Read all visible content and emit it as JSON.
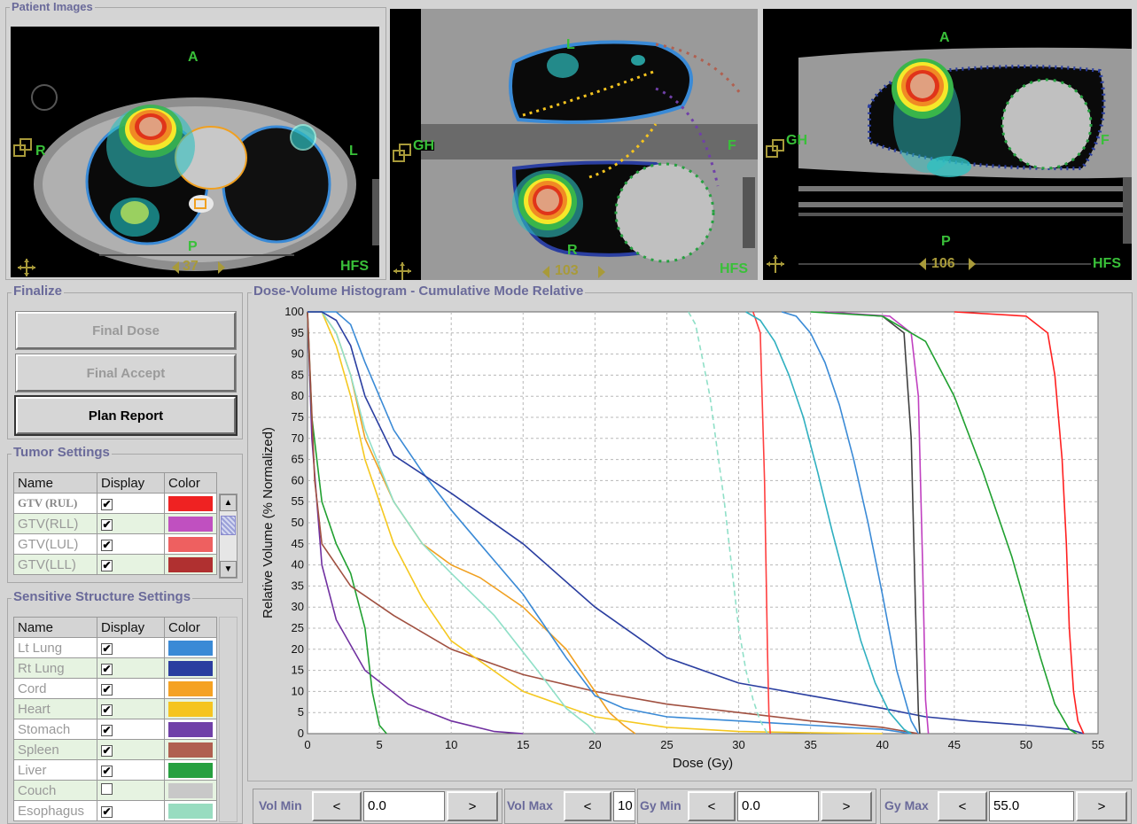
{
  "patient_images": {
    "title": "Patient Images",
    "views": [
      {
        "top": "A",
        "bottom": "P",
        "left": "R",
        "right": "L",
        "slice": "37",
        "orientation": "HFS"
      },
      {
        "top": "L",
        "bottom": "R",
        "left": "GH",
        "right": "F",
        "slice": "103",
        "orientation": "HFS"
      },
      {
        "top": "A",
        "bottom": "P",
        "left": "GH",
        "right": "F",
        "slice": "106",
        "orientation": "HFS"
      }
    ]
  },
  "finalize": {
    "title": "Finalize",
    "final_dose": "Final Dose",
    "final_accept": "Final Accept",
    "plan_report": "Plan Report"
  },
  "tumor_settings": {
    "title": "Tumor Settings",
    "headers": [
      "Name",
      "Display",
      "Color"
    ],
    "rows": [
      {
        "name": "GTV (RUL)",
        "checked": true,
        "color": "#ef2222"
      },
      {
        "name": "GTV(RLL)",
        "checked": true,
        "color": "#c050c0"
      },
      {
        "name": "GTV(LUL)",
        "checked": true,
        "color": "#ee6060"
      },
      {
        "name": "GTV(LLL)",
        "checked": true,
        "color": "#b03030"
      }
    ]
  },
  "sensitive_settings": {
    "title": "Sensitive Structure Settings",
    "headers": [
      "Name",
      "Display",
      "Color"
    ],
    "rows": [
      {
        "name": "Lt Lung",
        "checked": true,
        "color": "#3a8ad6"
      },
      {
        "name": "Rt Lung",
        "checked": true,
        "color": "#2a3ea0"
      },
      {
        "name": "Cord",
        "checked": true,
        "color": "#f5a223"
      },
      {
        "name": "Heart",
        "checked": true,
        "color": "#f5c41f"
      },
      {
        "name": "Stomach",
        "checked": true,
        "color": "#7040a8"
      },
      {
        "name": "Spleen",
        "checked": true,
        "color": "#b06050"
      },
      {
        "name": "Liver",
        "checked": true,
        "color": "#26a040"
      },
      {
        "name": "Couch",
        "checked": false,
        "color": "#c8c8c8"
      },
      {
        "name": "Esophagus",
        "checked": true,
        "color": "#98dcc0"
      }
    ]
  },
  "chart_data": {
    "type": "line",
    "title": "Dose-Volume Histogram - Cumulative Mode Relative",
    "xlabel": "Dose (Gy)",
    "ylabel": "Relative Volume (% Normalized)",
    "xlim": [
      0,
      55
    ],
    "ylim": [
      0,
      100
    ],
    "xticks": [
      0,
      5,
      10,
      15,
      20,
      25,
      30,
      35,
      40,
      45,
      50,
      55
    ],
    "yticks": [
      0,
      5,
      10,
      15,
      20,
      25,
      30,
      35,
      40,
      45,
      50,
      55,
      60,
      65,
      70,
      75,
      80,
      85,
      90,
      95,
      100
    ],
    "grid": true,
    "series": [
      {
        "color": "#7030a0",
        "x": [
          0,
          0.3,
          1,
          2,
          4,
          7,
          10,
          13,
          15
        ],
        "y": [
          100,
          70,
          40,
          27,
          15,
          7,
          3,
          0.5,
          0
        ]
      },
      {
        "color": "#20a030",
        "x": [
          0,
          0.3,
          1,
          2,
          3,
          4,
          4.5,
          5,
          5.5
        ],
        "y": [
          100,
          75,
          55,
          45,
          38,
          25,
          10,
          2,
          0
        ]
      },
      {
        "color": "#a05040",
        "x": [
          0,
          0.5,
          1,
          3,
          6,
          10,
          15,
          20,
          25,
          30,
          35,
          40,
          42.5
        ],
        "y": [
          100,
          60,
          45,
          35,
          28,
          20,
          14,
          10,
          7,
          5,
          3,
          1.5,
          0
        ]
      },
      {
        "color": "#f0a020",
        "x": [
          0,
          1,
          2,
          3,
          4,
          6,
          8,
          10,
          12,
          15,
          18,
          20,
          21,
          22,
          22.8
        ],
        "y": [
          100,
          100,
          95,
          85,
          70,
          55,
          45,
          40,
          37,
          30,
          20,
          10,
          5,
          2,
          0
        ]
      },
      {
        "color": "#f5c820",
        "x": [
          0,
          1,
          2,
          3,
          4,
          6,
          8,
          10,
          15,
          20,
          25,
          30,
          35,
          40
        ],
        "y": [
          100,
          100,
          92,
          80,
          65,
          45,
          32,
          22,
          10,
          4,
          1.5,
          0.5,
          0.2,
          0
        ]
      },
      {
        "color": "#90e0c8",
        "x": [
          0,
          1,
          2,
          3,
          4,
          6,
          8,
          10,
          13,
          16,
          18,
          19.5,
          20
        ],
        "y": [
          100,
          100,
          95,
          85,
          72,
          55,
          45,
          38,
          28,
          15,
          6,
          2,
          0
        ]
      },
      {
        "color": "#3a8ad6",
        "x": [
          0,
          1,
          2,
          3,
          4,
          6,
          8,
          10,
          12,
          15,
          18,
          20,
          22,
          25,
          30,
          35,
          40,
          42
        ],
        "y": [
          100,
          100,
          100,
          97,
          88,
          72,
          62,
          53,
          45,
          33,
          18,
          9,
          6,
          4,
          3,
          2,
          1,
          0
        ]
      },
      {
        "color": "#2a3ea0",
        "x": [
          0,
          1,
          2,
          3,
          4,
          6,
          10,
          15,
          20,
          25,
          30,
          35,
          40,
          43,
          46,
          50,
          53,
          54
        ],
        "y": [
          100,
          100,
          98,
          92,
          80,
          66,
          57,
          45,
          30,
          18,
          12,
          9,
          6,
          4,
          3,
          2,
          1,
          0
        ]
      },
      {
        "color": "#90e0c8",
        "dash": true,
        "x": [
          26.5,
          27,
          28,
          29,
          29.5,
          30,
          30.5,
          31,
          31.5,
          32
        ],
        "y": [
          100,
          97,
          80,
          55,
          40,
          25,
          15,
          8,
          3,
          0
        ]
      },
      {
        "color": "#ff4040",
        "x": [
          31,
          31.5,
          31.8,
          32,
          32.1,
          32.2
        ],
        "y": [
          100,
          95,
          60,
          20,
          5,
          0
        ]
      },
      {
        "color": "#30b0c0",
        "x": [
          30.5,
          31.5,
          32.5,
          33.5,
          34.5,
          35.5,
          36.5,
          37.5,
          38.5,
          39.5,
          40.5,
          41.5,
          42
        ],
        "y": [
          100,
          98,
          93,
          85,
          75,
          62,
          48,
          35,
          22,
          12,
          5,
          1,
          0
        ]
      },
      {
        "color": "#3a8ad6",
        "x": [
          33,
          34,
          35,
          36,
          37,
          38,
          39,
          40,
          41,
          42,
          42.5
        ],
        "y": [
          100,
          99,
          95,
          88,
          78,
          65,
          50,
          33,
          15,
          3,
          0
        ]
      },
      {
        "color": "#404040",
        "x": [
          36,
          40,
          41.5,
          42,
          42.3,
          42.5,
          42.6
        ],
        "y": [
          100,
          99,
          95,
          70,
          30,
          5,
          0
        ]
      },
      {
        "color": "#c040c0",
        "x": [
          36,
          40.5,
          42,
          42.5,
          42.8,
          43,
          43.2
        ],
        "y": [
          100,
          99,
          95,
          80,
          40,
          8,
          0
        ]
      },
      {
        "color": "#20a030",
        "x": [
          35,
          40,
          43,
          45,
          47,
          49,
          50,
          51,
          52,
          53,
          53.5
        ],
        "y": [
          100,
          99,
          93,
          80,
          62,
          42,
          30,
          18,
          7,
          1,
          0
        ]
      },
      {
        "color": "#ff2020",
        "x": [
          45,
          50,
          51.5,
          52,
          52.5,
          52.8,
          53,
          53.3,
          53.6,
          54
        ],
        "y": [
          100,
          99,
          95,
          85,
          65,
          45,
          25,
          10,
          3,
          0
        ]
      }
    ]
  },
  "controls": [
    {
      "label": "Vol Min",
      "dec": "<",
      "value": "0.0",
      "inc": ">"
    },
    {
      "label": "Vol Max",
      "dec": "<",
      "value": "10",
      "inc": ""
    },
    {
      "label": "Gy Min",
      "dec": "<",
      "value": "0.0",
      "inc": ">"
    },
    {
      "label": "Gy Max",
      "dec": "<",
      "value": "55.0",
      "inc": ">"
    }
  ]
}
